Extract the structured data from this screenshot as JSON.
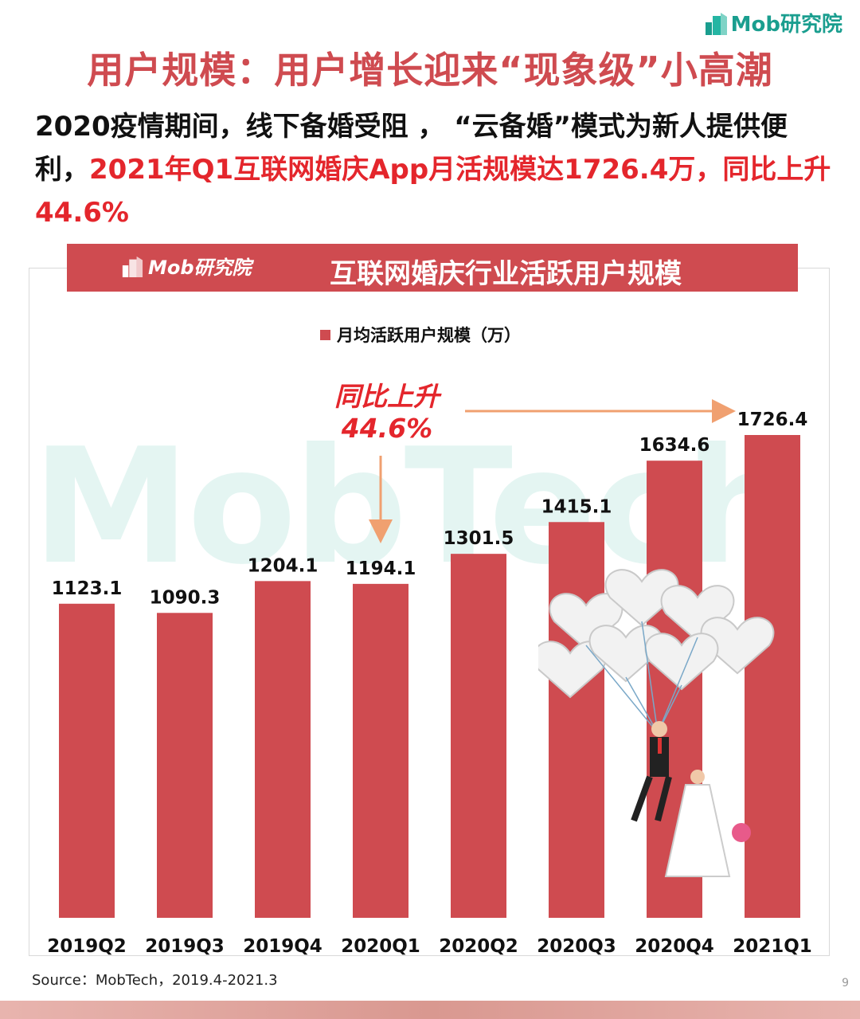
{
  "header": {
    "logo_text": "Mob研究院",
    "title": "用户规模：用户增长迎来“现象级”小高潮",
    "subtitle_part1": "2020疫情期间，线下备婚受阻 ， “云备婚”模式为新人提供便利，",
    "subtitle_highlight": "2021年Q1互联网婚庆App月活规模达1726.4万，同比上升44.6%"
  },
  "chart_banner": {
    "logo_text": "Mob研究院",
    "title": "互联网婚庆行业活跃用户规模"
  },
  "watermark": "MobTech",
  "annotation": {
    "line1": "同比上升",
    "line2": "44.6%"
  },
  "chart_data": {
    "type": "bar",
    "categories": [
      "2019Q2",
      "2019Q3",
      "2019Q4",
      "2020Q1",
      "2020Q2",
      "2020Q3",
      "2020Q4",
      "2021Q1"
    ],
    "series": [
      {
        "name": "月均活跃用户规模（万）",
        "values": [
          1123.1,
          1090.3,
          1204.1,
          1194.1,
          1301.5,
          1415.1,
          1634.6,
          1726.4
        ],
        "color": "#cf4b50"
      }
    ],
    "data_labels": [
      "1123.1",
      "1090.3",
      "1204.1",
      "1194.1",
      "1301.5",
      "1415.1",
      "1634.6",
      "1726.4"
    ],
    "legend_position": "top-center",
    "grid": false,
    "ylim": [
      0,
      1900
    ]
  },
  "footer": {
    "source": "Source：MobTech，2019.4-2021.3",
    "page_number": "9"
  },
  "colors": {
    "accent": "#cf4b50",
    "highlight": "#e4262c",
    "arrow": "#f0a070",
    "brand_green": "#1a9e8f"
  }
}
